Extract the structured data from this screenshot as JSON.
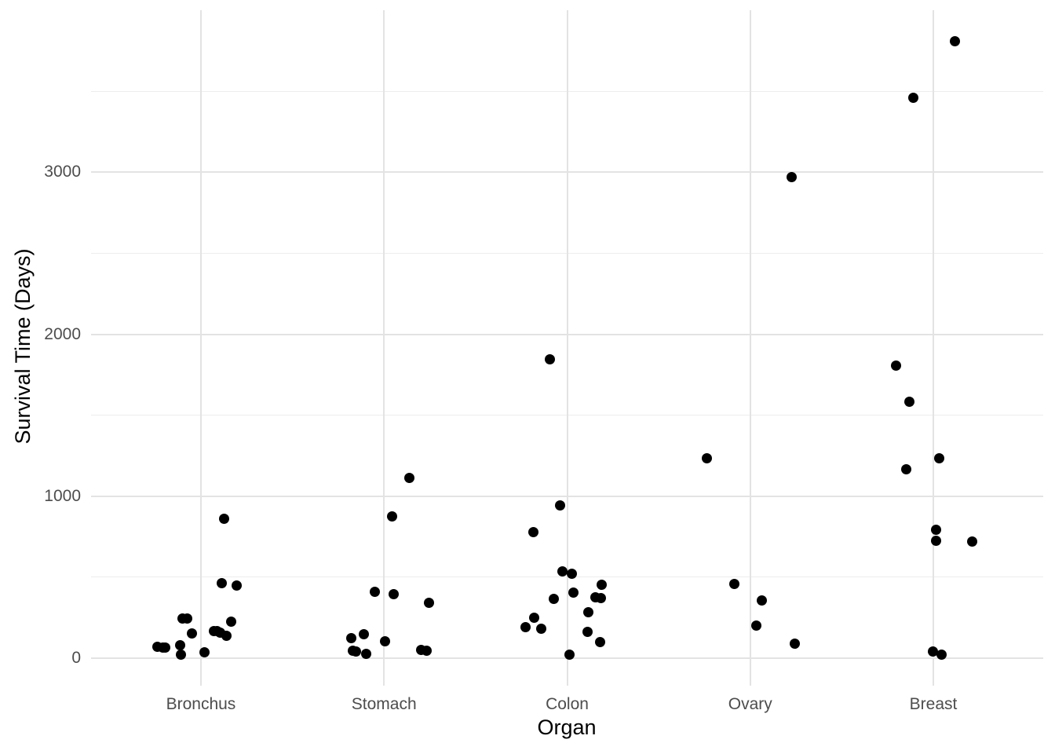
{
  "chart_data": {
    "type": "scatter",
    "title": "",
    "xlabel": "Organ",
    "ylabel": "Survival Time (Days)",
    "categories": [
      "Bronchus",
      "Stomach",
      "Colon",
      "Ovary",
      "Breast"
    ],
    "y_ticks": [
      0,
      1000,
      2000,
      3000
    ],
    "y_minor_ticks": [
      500,
      1500,
      2500,
      3500
    ],
    "ylim": [
      -170,
      4001
    ],
    "grid": "major-and-minor",
    "legend_position": "none",
    "points": [
      {
        "organ": "Bronchus",
        "value": 859,
        "dx": 30
      },
      {
        "organ": "Bronchus",
        "value": 461,
        "dx": 27
      },
      {
        "organ": "Bronchus",
        "value": 450,
        "dx": 46
      },
      {
        "organ": "Bronchus",
        "value": 246,
        "dx": -17
      },
      {
        "organ": "Bronchus",
        "value": 245,
        "dx": -23
      },
      {
        "organ": "Bronchus",
        "value": 223,
        "dx": 39
      },
      {
        "organ": "Bronchus",
        "value": 166,
        "dx": 17
      },
      {
        "organ": "Bronchus",
        "value": 166,
        "dx": 21
      },
      {
        "organ": "Bronchus",
        "value": 155,
        "dx": 25
      },
      {
        "organ": "Bronchus",
        "value": 151,
        "dx": -11
      },
      {
        "organ": "Bronchus",
        "value": 138,
        "dx": 33
      },
      {
        "organ": "Bronchus",
        "value": 81,
        "dx": -26
      },
      {
        "organ": "Bronchus",
        "value": 72,
        "dx": -55
      },
      {
        "organ": "Bronchus",
        "value": 64,
        "dx": -48
      },
      {
        "organ": "Bronchus",
        "value": 63,
        "dx": -45
      },
      {
        "organ": "Bronchus",
        "value": 37,
        "dx": 5
      },
      {
        "organ": "Bronchus",
        "value": 20,
        "dx": -25
      },
      {
        "organ": "Stomach",
        "value": 1112,
        "dx": 32
      },
      {
        "organ": "Stomach",
        "value": 876,
        "dx": 10
      },
      {
        "organ": "Stomach",
        "value": 412,
        "dx": -12
      },
      {
        "organ": "Stomach",
        "value": 396,
        "dx": 12
      },
      {
        "organ": "Stomach",
        "value": 340,
        "dx": 57
      },
      {
        "organ": "Stomach",
        "value": 146,
        "dx": -26
      },
      {
        "organ": "Stomach",
        "value": 124,
        "dx": -42
      },
      {
        "organ": "Stomach",
        "value": 103,
        "dx": 1
      },
      {
        "organ": "Stomach",
        "value": 51,
        "dx": 47
      },
      {
        "organ": "Stomach",
        "value": 46,
        "dx": 54
      },
      {
        "organ": "Stomach",
        "value": 45,
        "dx": -40
      },
      {
        "organ": "Stomach",
        "value": 42,
        "dx": -36
      },
      {
        "organ": "Stomach",
        "value": 25,
        "dx": -23
      },
      {
        "organ": "Colon",
        "value": 1843,
        "dx": -22
      },
      {
        "organ": "Colon",
        "value": 942,
        "dx": -9
      },
      {
        "organ": "Colon",
        "value": 776,
        "dx": -43
      },
      {
        "organ": "Colon",
        "value": 537,
        "dx": -6
      },
      {
        "organ": "Colon",
        "value": 519,
        "dx": 6
      },
      {
        "organ": "Colon",
        "value": 455,
        "dx": 44
      },
      {
        "organ": "Colon",
        "value": 406,
        "dx": 8
      },
      {
        "organ": "Colon",
        "value": 377,
        "dx": 36
      },
      {
        "organ": "Colon",
        "value": 372,
        "dx": 43
      },
      {
        "organ": "Colon",
        "value": 365,
        "dx": -17
      },
      {
        "organ": "Colon",
        "value": 283,
        "dx": 27
      },
      {
        "organ": "Colon",
        "value": 248,
        "dx": -42
      },
      {
        "organ": "Colon",
        "value": 189,
        "dx": -53
      },
      {
        "organ": "Colon",
        "value": 180,
        "dx": -33
      },
      {
        "organ": "Colon",
        "value": 163,
        "dx": 26
      },
      {
        "organ": "Colon",
        "value": 101,
        "dx": 42
      },
      {
        "organ": "Colon",
        "value": 20,
        "dx": 3
      },
      {
        "organ": "Ovary",
        "value": 2970,
        "dx": 53
      },
      {
        "organ": "Ovary",
        "value": 1234,
        "dx": -55
      },
      {
        "organ": "Ovary",
        "value": 456,
        "dx": -20
      },
      {
        "organ": "Ovary",
        "value": 356,
        "dx": 15
      },
      {
        "organ": "Ovary",
        "value": 201,
        "dx": 8
      },
      {
        "organ": "Ovary",
        "value": 89,
        "dx": 57
      },
      {
        "organ": "Breast",
        "value": 3808,
        "dx": 27
      },
      {
        "organ": "Breast",
        "value": 3460,
        "dx": -26
      },
      {
        "organ": "Breast",
        "value": 1804,
        "dx": -48
      },
      {
        "organ": "Breast",
        "value": 1581,
        "dx": -31
      },
      {
        "organ": "Breast",
        "value": 1235,
        "dx": 7
      },
      {
        "organ": "Breast",
        "value": 1166,
        "dx": -35
      },
      {
        "organ": "Breast",
        "value": 791,
        "dx": 3
      },
      {
        "organ": "Breast",
        "value": 727,
        "dx": 3
      },
      {
        "organ": "Breast",
        "value": 719,
        "dx": 49
      },
      {
        "organ": "Breast",
        "value": 40,
        "dx": -1
      },
      {
        "organ": "Breast",
        "value": 24,
        "dx": 10
      }
    ],
    "colors": {
      "point": "#000000",
      "grid_major": "#E3E3E3",
      "grid_minor": "#EDEDED",
      "axis_text": "#4D4D4D",
      "axis_title": "#000000",
      "background": "#FFFFFF"
    }
  }
}
